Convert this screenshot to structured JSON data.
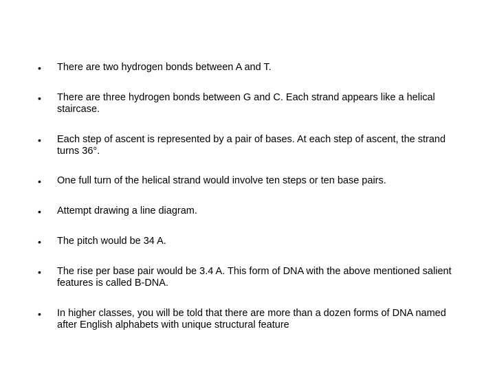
{
  "text_color": "#000000",
  "background_color": "#ffffff",
  "font_family": "Arial, Helvetica, sans-serif",
  "font_size_pt": 11,
  "bullets": [
    "There are two hydrogen bonds between A and T.",
    "There are three hydrogen bonds between G and C. Each strand appears like a helical staircase.",
    " Each step of ascent is represented by a pair of bases. At each step of ascent, the strand turns 36°.",
    "One full turn of the helical strand would involve ten steps or ten base pairs.",
    "Attempt drawing a line diagram.",
    "The pitch would be 34 A.",
    "The rise per base pair would be 3.4 A. This form of DNA with the above mentioned salient features is called B-DNA.",
    "In higher classes, you will be told that there are more than a dozen forms of DNA named after English alphabets with unique structural feature"
  ]
}
